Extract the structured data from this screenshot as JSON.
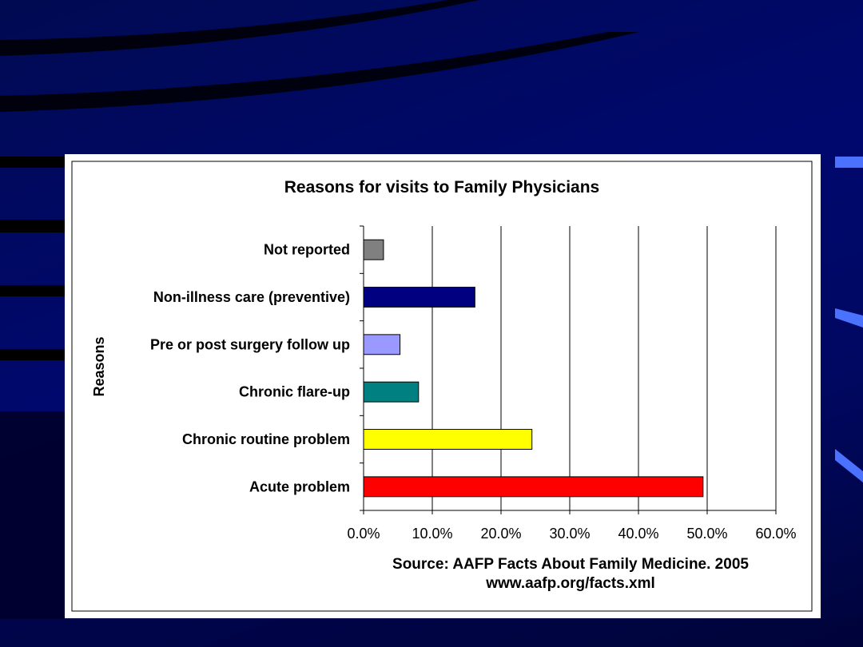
{
  "chart_data": {
    "type": "bar",
    "orientation": "horizontal",
    "title": "Reasons for visits to Family Physicians",
    "ylabel": "Reasons",
    "xlabel": "",
    "categories": [
      "Not reported",
      "Non-illness care (preventive)",
      "Pre or post surgery follow up",
      "Chronic flare-up",
      "Chronic routine problem",
      "Acute problem"
    ],
    "values": [
      0.029,
      0.162,
      0.053,
      0.08,
      0.245,
      0.494
    ],
    "bar_colors": [
      "#808080",
      "#000080",
      "#9999ff",
      "#008080",
      "#ffff00",
      "#ff0000"
    ],
    "xlim": [
      0,
      0.6
    ],
    "xticks": [
      0,
      0.1,
      0.2,
      0.3,
      0.4,
      0.5,
      0.6
    ],
    "xtick_labels": [
      "0.0%",
      "10.0%",
      "20.0%",
      "30.0%",
      "40.0%",
      "50.0%",
      "60.0%"
    ],
    "grid": "vertical",
    "legend": "none"
  },
  "source_line1": "Source: AAFP Facts About Family Medicine. 2005",
  "source_line2": "www.aafp.org/facts.xml",
  "colors": {
    "background": "#000a6e",
    "card": "#ffffff"
  }
}
